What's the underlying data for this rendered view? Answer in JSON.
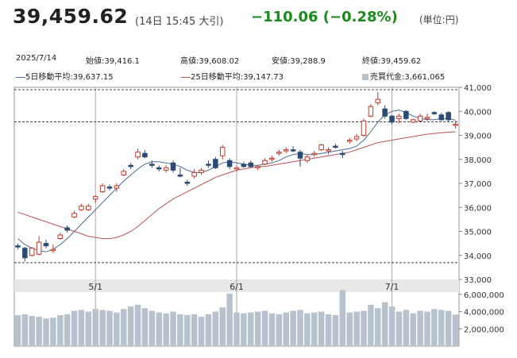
{
  "header": {
    "price": "39,459.62",
    "timestamp": "(14日 15:45 大引)",
    "change": "−110.06 (−0.28%)",
    "unit": "(単位:円)"
  },
  "summary": {
    "date": "2025/7/14",
    "open_label": "始値:",
    "open": "39,416.1",
    "high_label": "高値:",
    "high": "39,608.02",
    "low_label": "安値:",
    "low": "39,288.9",
    "close_label": "終値:",
    "close": "39,459.62",
    "ma5_label": "5日移動平均:",
    "ma5": "39,637.15",
    "ma25_label": "25日移動平均:",
    "ma25": "39,147.73",
    "vol_label": "売買代金:",
    "vol": "3,661,065"
  },
  "colors": {
    "up": "#c0392b",
    "down": "#2c4a73",
    "ma5": "#4a6a96",
    "ma25": "#b85555",
    "volume": "#b8c2cc",
    "axis_band": "#e8e8e8"
  },
  "chart_data": {
    "type": "candlestick",
    "x_tick_labels": [
      "5/1",
      "6/1",
      "7/1"
    ],
    "x_tick_indices": [
      11,
      31,
      53
    ],
    "price_axis": {
      "min": 33000,
      "max": 41000,
      "ticks": [
        41000,
        40000,
        39000,
        38000,
        37000,
        36000,
        35000,
        34000,
        33000
      ],
      "tick_labels": [
        "41,000",
        "40,000",
        "39,000",
        "38,000",
        "37,000",
        "36,000",
        "35,000",
        "34,000",
        "33,000"
      ]
    },
    "reference_lines": [
      40900,
      39560,
      33700
    ],
    "volume_axis": {
      "min": 0,
      "max": 7000000,
      "ticks": [
        6000000,
        4000000,
        2000000
      ],
      "tick_labels": [
        "6,000,000",
        "4,000,000",
        "2,000,000"
      ]
    },
    "ohlc": [
      [
        34400,
        34500,
        34250,
        34350
      ],
      [
        34300,
        34350,
        33750,
        33900
      ],
      [
        34000,
        34350,
        33950,
        34300
      ],
      [
        34050,
        34800,
        34000,
        34550
      ],
      [
        34500,
        34650,
        34300,
        34400
      ],
      [
        34200,
        34450,
        34100,
        34250
      ],
      [
        34700,
        34950,
        34650,
        34850
      ],
      [
        35150,
        35250,
        34950,
        35050
      ],
      [
        35600,
        35850,
        35550,
        35750
      ],
      [
        35900,
        36150,
        35850,
        36050
      ],
      [
        35900,
        36150,
        35850,
        36050
      ],
      [
        36350,
        36500,
        36200,
        36450
      ],
      [
        36650,
        37000,
        36600,
        36900
      ],
      [
        36850,
        36950,
        36700,
        36800
      ],
      [
        36800,
        37000,
        36650,
        36900
      ],
      [
        37350,
        37600,
        37300,
        37500
      ],
      [
        37750,
        37850,
        37600,
        37700
      ],
      [
        38100,
        38450,
        38000,
        38300
      ],
      [
        38250,
        38400,
        38050,
        38100
      ],
      [
        37800,
        37950,
        37650,
        37750
      ],
      [
        37650,
        37750,
        37500,
        37600
      ],
      [
        37550,
        37750,
        37450,
        37650
      ],
      [
        37850,
        37950,
        37450,
        37550
      ],
      [
        37350,
        37650,
        37250,
        37300
      ],
      [
        37050,
        37150,
        36900,
        37000
      ],
      [
        37300,
        37600,
        37200,
        37450
      ],
      [
        37450,
        37650,
        37350,
        37550
      ],
      [
        37800,
        37950,
        37650,
        37750
      ],
      [
        38000,
        38100,
        37600,
        37650
      ],
      [
        38150,
        38600,
        38000,
        38500
      ],
      [
        37950,
        38050,
        37600,
        37700
      ],
      [
        37600,
        37750,
        37500,
        37650
      ],
      [
        37800,
        37900,
        37650,
        37700
      ],
      [
        37850,
        37950,
        37650,
        37700
      ],
      [
        37650,
        37750,
        37550,
        37700
      ],
      [
        37800,
        38050,
        37750,
        37950
      ],
      [
        38000,
        38150,
        37900,
        38050
      ],
      [
        38250,
        38400,
        38150,
        38300
      ],
      [
        38350,
        38500,
        38250,
        38400
      ],
      [
        38400,
        38550,
        38300,
        38350
      ],
      [
        38300,
        38400,
        37700,
        38050
      ],
      [
        37950,
        38200,
        37850,
        38100
      ],
      [
        38200,
        38350,
        38100,
        38250
      ],
      [
        38400,
        38650,
        38350,
        38600
      ],
      [
        38350,
        38500,
        38200,
        38400
      ],
      [
        38550,
        38650,
        38450,
        38500
      ],
      [
        38250,
        38350,
        38050,
        38200
      ],
      [
        38750,
        38900,
        38650,
        38800
      ],
      [
        38850,
        39050,
        38750,
        38950
      ],
      [
        39000,
        39700,
        38950,
        39600
      ],
      [
        39800,
        40300,
        39750,
        40200
      ],
      [
        40350,
        40800,
        40250,
        40500
      ],
      [
        40100,
        40250,
        39700,
        39800
      ],
      [
        39800,
        39850,
        39450,
        39550
      ],
      [
        39700,
        39900,
        39500,
        39800
      ],
      [
        40000,
        40050,
        39650,
        39700
      ],
      [
        39550,
        39700,
        39500,
        39650
      ],
      [
        39600,
        39900,
        39550,
        39800
      ],
      [
        39700,
        39900,
        39600,
        39750
      ],
      [
        39950,
        40000,
        39850,
        39900
      ],
      [
        39850,
        39950,
        39600,
        39650
      ],
      [
        39950,
        40000,
        39550,
        39650
      ],
      [
        39416,
        39608,
        39289,
        39460
      ]
    ],
    "ma5": [
      34700,
      34450,
      34300,
      34200,
      34150,
      34250,
      34450,
      34700,
      35000,
      35300,
      35600,
      35900,
      36200,
      36500,
      36800,
      37100,
      37350,
      37600,
      37800,
      37900,
      37900,
      37850,
      37800,
      37700,
      37550,
      37450,
      37450,
      37550,
      37700,
      37850,
      37900,
      37850,
      37800,
      37750,
      37750,
      37800,
      37850,
      37950,
      38100,
      38200,
      38250,
      38200,
      38200,
      38250,
      38300,
      38350,
      38400,
      38450,
      38550,
      38800,
      39150,
      39550,
      39850,
      40000,
      40050,
      39950,
      39800,
      39700,
      39650,
      39650,
      39700,
      39680,
      39637
    ],
    "ma25": [
      35800,
      35700,
      35600,
      35500,
      35400,
      35300,
      35200,
      35100,
      35000,
      34900,
      34800,
      34750,
      34700,
      34700,
      34750,
      34850,
      35000,
      35200,
      35450,
      35700,
      35950,
      36150,
      36350,
      36500,
      36650,
      36800,
      36950,
      37100,
      37250,
      37350,
      37450,
      37550,
      37600,
      37650,
      37700,
      37700,
      37750,
      37800,
      37850,
      37900,
      37950,
      38000,
      38050,
      38100,
      38150,
      38200,
      38250,
      38300,
      38400,
      38500,
      38600,
      38700,
      38750,
      38800,
      38850,
      38900,
      38950,
      39000,
      39050,
      39080,
      39110,
      39130,
      39148
    ],
    "volume": [
      3600000,
      3700000,
      3500000,
      3400000,
      3200000,
      3300000,
      3600000,
      3700000,
      4100000,
      4200000,
      4000000,
      4300000,
      4200000,
      4100000,
      3900000,
      4300000,
      4600000,
      4800000,
      4400000,
      4100000,
      3900000,
      3800000,
      4000000,
      3700000,
      3600000,
      3700000,
      3400000,
      3700000,
      4000000,
      4500000,
      6100000,
      3900000,
      3800000,
      3900000,
      4000000,
      4100000,
      3800000,
      3700000,
      3900000,
      4100000,
      4200000,
      3800000,
      3900000,
      4000000,
      3700000,
      3600000,
      6500000,
      3900000,
      4000000,
      4100000,
      4800000,
      4400000,
      5100000,
      4600000,
      4000000,
      4200000,
      3800000,
      4100000,
      4000000,
      4300000,
      4200000,
      4100000,
      3661065
    ]
  }
}
